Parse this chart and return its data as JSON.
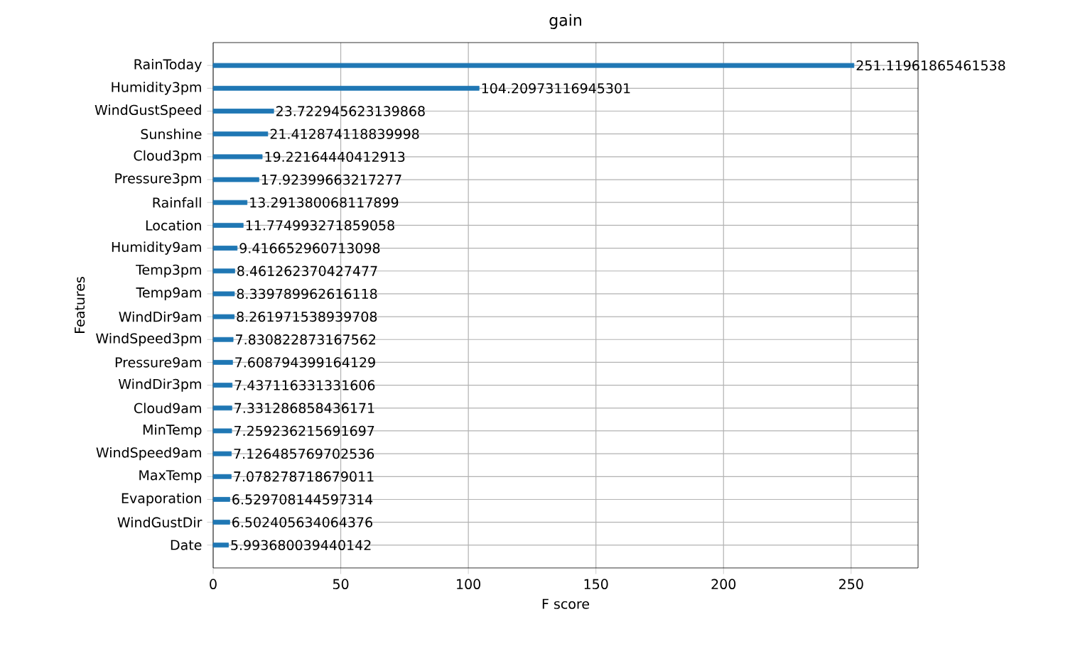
{
  "chart_data": {
    "type": "bar",
    "orientation": "horizontal",
    "title": "gain",
    "xlabel": "F score",
    "ylabel": "Features",
    "categories": [
      "RainToday",
      "Humidity3pm",
      "WindGustSpeed",
      "Sunshine",
      "Cloud3pm",
      "Pressure3pm",
      "Rainfall",
      "Location",
      "Humidity9am",
      "Temp3pm",
      "Temp9am",
      "WindDir9am",
      "WindSpeed3pm",
      "Pressure9am",
      "WindDir3pm",
      "Cloud9am",
      "MinTemp",
      "WindSpeed9am",
      "MaxTemp",
      "Evaporation",
      "WindGustDir",
      "Date"
    ],
    "values": [
      251.11961865461538,
      104.20973116945301,
      23.722945623139868,
      21.412874118839998,
      19.22164440412913,
      17.92399663217277,
      13.291380068117899,
      11.774993271859058,
      9.416652960713098,
      8.461262370427477,
      8.339789962616118,
      8.261971538939708,
      7.830822873167562,
      7.608794399164129,
      7.437116331331606,
      7.331286858436171,
      7.259236215691697,
      7.126485769702536,
      7.078278718679011,
      6.529708144597314,
      6.502405634064376,
      5.993680039440142
    ],
    "color": "#1f77b4",
    "xlim": [
      0,
      276.23
    ],
    "xticks": [
      0,
      50,
      100,
      150,
      200,
      250
    ],
    "grid": true,
    "data_labels": true
  }
}
